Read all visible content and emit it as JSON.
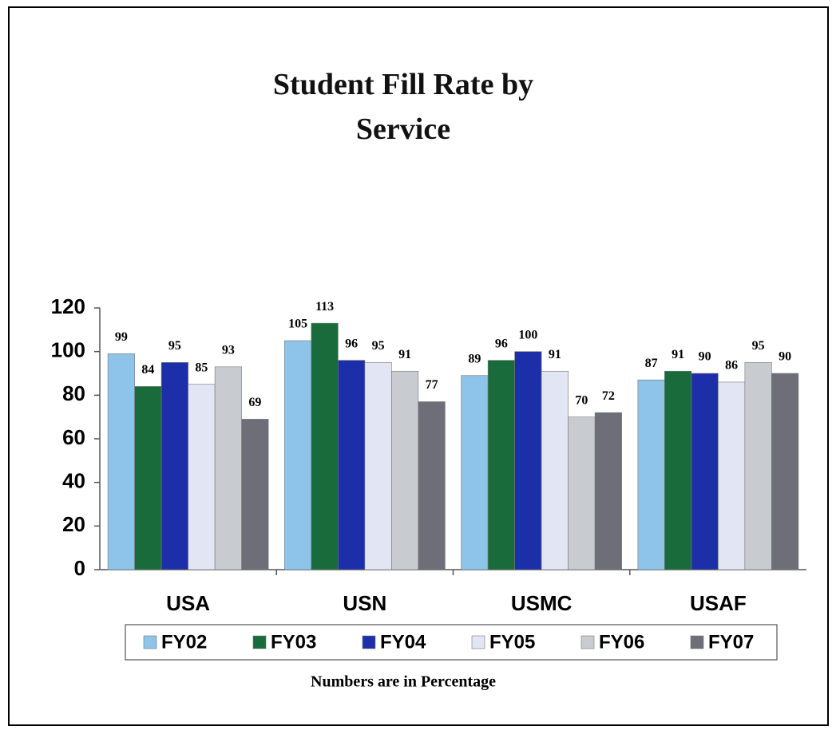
{
  "chart_data": {
    "type": "bar",
    "title": "Student Fill Rate by Service",
    "note": "Numbers are in Percentage",
    "categories": [
      "USA",
      "USN",
      "USMC",
      "USAF"
    ],
    "series": [
      {
        "name": "FY02",
        "color": "#8ec4ea",
        "values": [
          99,
          105,
          89,
          87
        ]
      },
      {
        "name": "FY03",
        "color": "#1a6b3c",
        "values": [
          84,
          113,
          96,
          91
        ]
      },
      {
        "name": "FY04",
        "color": "#1c2fa8",
        "values": [
          95,
          96,
          100,
          90
        ]
      },
      {
        "name": "FY05",
        "color": "#e2e6f4",
        "values": [
          85,
          95,
          91,
          86
        ]
      },
      {
        "name": "FY06",
        "color": "#c8ccd0",
        "values": [
          93,
          91,
          70,
          95
        ]
      },
      {
        "name": "FY07",
        "color": "#6e6e78",
        "values": [
          69,
          77,
          72,
          90
        ]
      }
    ],
    "ylim": [
      0,
      120
    ],
    "yticks": [
      0,
      20,
      40,
      60,
      80,
      100,
      120
    ],
    "grid": false,
    "legend": "bottom"
  }
}
